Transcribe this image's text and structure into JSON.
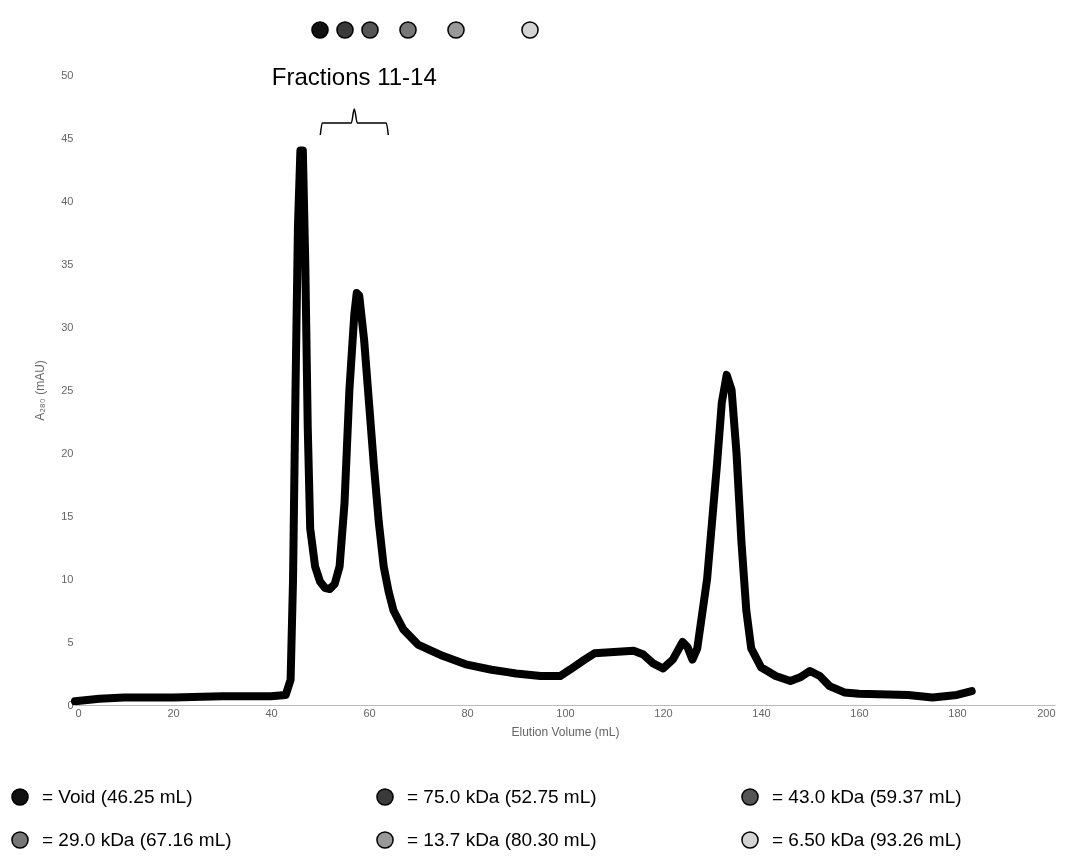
{
  "chart_data": {
    "type": "line",
    "xlabel": "Elution Volume (mL)",
    "ylabel": "A₂₈₀ (mAU)",
    "xlim": [
      0,
      200
    ],
    "xticks": [
      0,
      20,
      40,
      60,
      80,
      100,
      120,
      140,
      160,
      180,
      200
    ],
    "ylim": [
      0,
      50
    ],
    "yticks": [
      0,
      5,
      10,
      15,
      20,
      25,
      30,
      35,
      40,
      45,
      50
    ],
    "grid": false,
    "marker": "none",
    "line_style": "solid",
    "x": [
      0,
      5,
      10,
      20,
      30,
      40,
      43,
      44,
      44.5,
      45,
      45.5,
      46,
      46.5,
      47,
      47.5,
      48,
      49,
      50,
      51,
      52,
      53,
      54,
      55,
      56,
      57,
      57.5,
      58,
      59,
      60,
      61,
      62,
      63,
      64,
      65,
      67,
      70,
      75,
      80,
      85,
      90,
      95,
      99,
      101,
      104,
      106,
      110,
      114,
      116,
      118,
      120,
      122,
      124,
      125,
      126,
      127,
      129,
      131,
      132,
      133,
      134,
      135,
      136,
      137,
      138,
      140,
      143,
      146,
      148,
      150,
      152,
      154,
      157,
      160,
      170,
      175,
      180,
      183
    ],
    "series": [
      {
        "color": "#000000",
        "values": [
          0.3,
          0.5,
          0.6,
          0.6,
          0.7,
          0.7,
          0.8,
          2,
          10,
          25,
          38,
          44,
          44,
          35,
          22,
          14,
          11,
          9.8,
          9.3,
          9.2,
          9.6,
          11,
          16,
          25,
          31,
          32.7,
          32.5,
          29,
          24,
          19,
          14.5,
          11,
          9,
          7.5,
          6,
          4.8,
          3.9,
          3.2,
          2.8,
          2.5,
          2.3,
          2.3,
          2.8,
          3.6,
          4.1,
          4.2,
          4.3,
          4,
          3.3,
          2.9,
          3.6,
          5,
          4.6,
          3.6,
          4.5,
          10,
          19,
          24,
          26.2,
          25,
          20,
          13,
          7.5,
          4.5,
          3,
          2.3,
          1.9,
          2.2,
          2.7,
          2.3,
          1.5,
          1,
          0.9,
          0.8,
          0.6,
          0.8,
          1.1
        ]
      }
    ],
    "annotations": [
      "Fractions 11-14",
      "= Void (46.25 mL)",
      "= 75.0 kDa (52.75 mL)",
      "= 43.0 kDa (59.37 mL)",
      "= 29.0 kDa (67.16 mL)",
      "= 13.7 kDa (80.30 mL)",
      "= 6.50 kDa (93.26 mL)"
    ]
  }
}
